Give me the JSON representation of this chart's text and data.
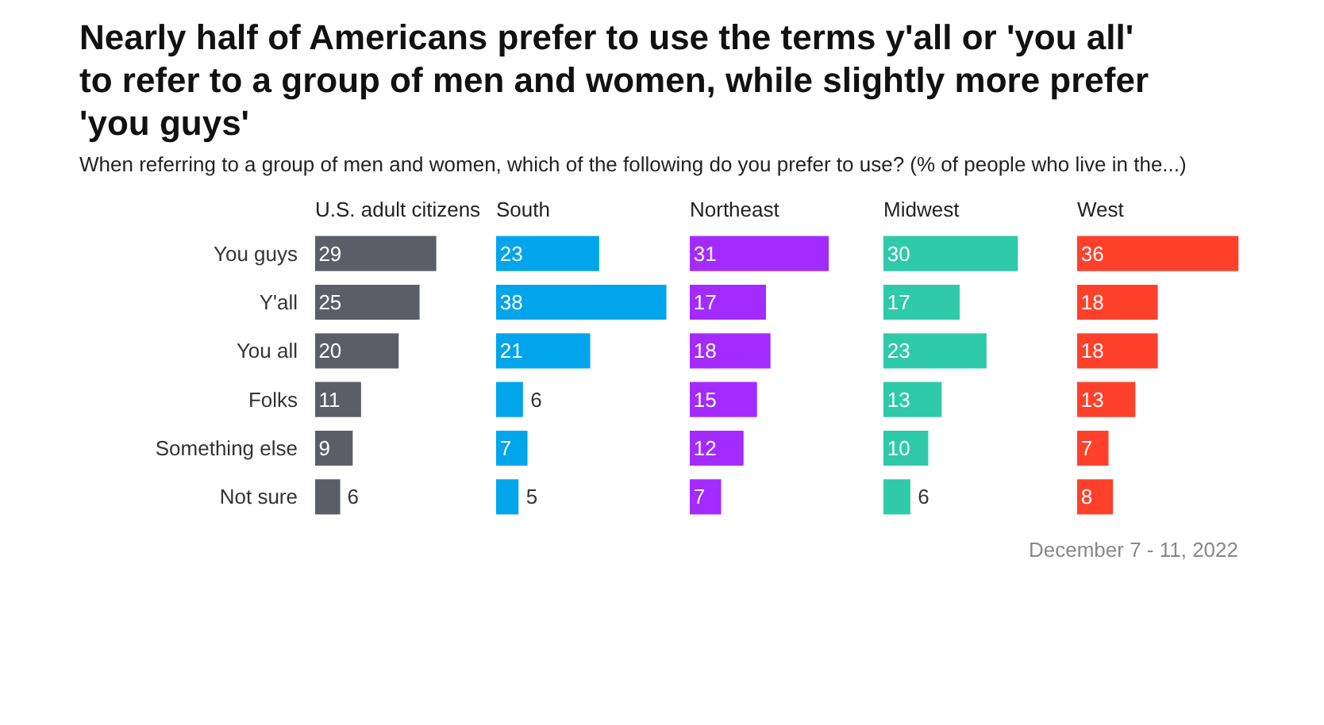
{
  "chart_data": [
    {
      "type": "bar",
      "orientation": "horizontal",
      "title": "Nearly half of Americans prefer to use the terms y'all or 'you all' to refer to a group of men and women, while slightly more prefer 'you guys'",
      "subtitle": "When referring to a group of men and women, which of the following do you prefer to use? (% of people who live in the...)",
      "categories": [
        "You guys",
        "Y'all",
        "You all",
        "Folks",
        "Something else",
        "Not sure"
      ],
      "tick_labels": "y",
      "data_labels": true,
      "series": [
        {
          "name": "U.S. adult citizens",
          "color": "#5b5e66",
          "values": [
            29,
            25,
            20,
            11,
            9,
            6
          ]
        }
      ]
    },
    {
      "type": "bar",
      "orientation": "horizontal",
      "tick_labels": false,
      "data_labels": true,
      "series": [
        {
          "name": "South",
          "color": "#00a5ec",
          "values": [
            23,
            38,
            21,
            6,
            7,
            5
          ]
        }
      ]
    },
    {
      "type": "bar",
      "orientation": "horizontal",
      "tick_labels": false,
      "data_labels": true,
      "series": [
        {
          "name": "Northeast",
          "color": "#a32bff",
          "values": [
            31,
            17,
            18,
            15,
            12,
            7
          ]
        }
      ]
    },
    {
      "type": "bar",
      "orientation": "horizontal",
      "tick_labels": false,
      "data_labels": true,
      "series": [
        {
          "name": "Midwest",
          "color": "#2ecaa9",
          "values": [
            30,
            17,
            23,
            13,
            10,
            6
          ]
        }
      ]
    },
    {
      "type": "bar",
      "orientation": "horizontal",
      "tick_labels": false,
      "data_labels": true,
      "annotations": [
        "December 7 - 11, 2022"
      ],
      "series": [
        {
          "name": "West",
          "color": "#ff412c",
          "values": [
            36,
            18,
            18,
            13,
            7,
            8
          ]
        }
      ]
    }
  ]
}
